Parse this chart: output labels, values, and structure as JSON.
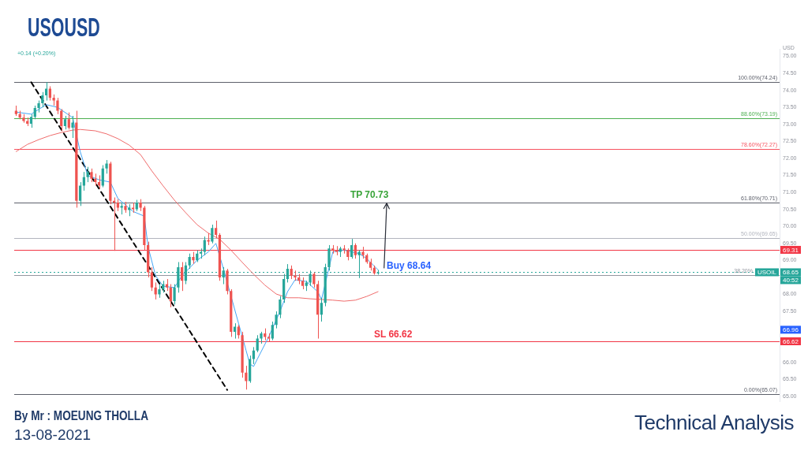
{
  "chart_data": {
    "type": "candlestick",
    "title": "USOUSD",
    "categories": [
      null,
      null,
      null,
      null,
      null,
      null,
      null,
      null,
      null,
      null,
      null,
      null,
      null,
      null,
      null,
      null,
      null,
      null,
      null,
      null,
      null,
      null,
      null,
      null,
      null,
      null,
      null,
      null,
      null,
      null,
      null,
      null,
      null,
      null,
      null,
      null,
      null,
      null,
      null,
      null,
      null,
      null,
      null,
      null,
      null,
      null,
      null,
      null,
      null,
      null,
      null,
      null,
      null,
      null,
      null,
      null,
      null,
      null,
      null,
      null,
      null,
      null,
      null,
      null,
      null,
      null,
      null,
      null,
      null,
      null,
      null,
      null,
      null,
      null,
      null,
      null,
      null,
      null,
      null,
      null,
      null,
      null,
      null,
      null,
      null,
      null,
      null,
      null,
      null,
      null,
      null,
      null,
      null,
      null,
      null,
      null,
      null,
      null,
      null,
      null,
      null,
      null,
      null,
      null,
      null,
      null,
      null,
      null,
      null,
      null,
      null,
      null,
      null,
      null,
      null,
      null,
      null,
      null,
      null,
      null,
      null,
      null,
      null,
      null,
      null,
      null,
      null,
      null,
      null,
      null,
      null,
      null,
      null,
      null,
      null,
      null,
      null,
      null,
      null,
      null,
      null,
      null,
      null,
      null,
      null,
      null,
      null,
      null,
      null,
      null,
      null,
      null,
      null,
      null,
      null,
      null,
      null,
      null,
      null,
      null,
      null,
      null,
      null,
      null,
      null,
      null,
      null,
      null,
      null,
      null,
      null,
      null,
      null,
      null,
      null,
      null,
      null,
      null,
      null,
      null,
      null,
      null,
      null,
      null,
      null,
      null,
      null,
      null,
      null,
      null,
      null,
      null,
      null,
      null,
      null,
      null,
      null,
      null,
      null,
      null,
      null,
      null,
      null
    ],
    "ohlc": [
      [
        73.4,
        73.55,
        73.25,
        73.3
      ],
      [
        73.3,
        73.4,
        73.15,
        73.2
      ],
      [
        73.2,
        73.3,
        73.05,
        73.1
      ],
      [
        73.1,
        73.2,
        72.95,
        73.02
      ],
      [
        73.02,
        73.3,
        72.9,
        73.22
      ],
      [
        73.22,
        73.55,
        73.15,
        73.48
      ],
      [
        73.48,
        73.7,
        73.35,
        73.62
      ],
      [
        73.62,
        73.95,
        73.5,
        73.85
      ],
      [
        73.85,
        74.24,
        73.7,
        74.05
      ],
      [
        74.05,
        74.12,
        73.7,
        73.78
      ],
      [
        73.78,
        73.88,
        73.55,
        73.7
      ],
      [
        73.7,
        73.78,
        73.3,
        73.4
      ],
      [
        73.4,
        73.45,
        72.8,
        72.95
      ],
      [
        72.95,
        73.25,
        72.85,
        73.15
      ],
      [
        73.15,
        73.35,
        72.85,
        72.9
      ],
      [
        72.9,
        73.25,
        72.6,
        73.05
      ],
      [
        73.05,
        73.4,
        70.55,
        70.75
      ],
      [
        70.75,
        71.3,
        70.6,
        71.2
      ],
      [
        71.2,
        71.6,
        71.05,
        71.45
      ],
      [
        71.45,
        71.75,
        71.3,
        71.6
      ],
      [
        71.6,
        71.7,
        71.3,
        71.4
      ],
      [
        71.4,
        71.55,
        71.2,
        71.3
      ],
      [
        71.3,
        71.5,
        71.1,
        71.2
      ],
      [
        71.2,
        71.8,
        71.15,
        71.7
      ],
      [
        71.7,
        71.95,
        71.55,
        71.85
      ],
      [
        71.85,
        71.9,
        70.65,
        70.75
      ],
      [
        70.75,
        70.85,
        69.28,
        70.7
      ],
      [
        70.7,
        70.8,
        70.45,
        70.55
      ],
      [
        70.55,
        70.7,
        70.35,
        70.6
      ],
      [
        70.6,
        70.72,
        70.4,
        70.48
      ],
      [
        70.48,
        70.65,
        70.3,
        70.55
      ],
      [
        70.55,
        70.7,
        70.4,
        70.5
      ],
      [
        70.5,
        70.78,
        70.45,
        70.7
      ],
      [
        70.7,
        70.8,
        70.45,
        70.55
      ],
      [
        70.55,
        70.6,
        69.3,
        69.45
      ],
      [
        69.45,
        69.55,
        68.5,
        68.65
      ],
      [
        68.65,
        68.8,
        68.1,
        68.2
      ],
      [
        68.2,
        68.35,
        67.85,
        68.0
      ],
      [
        68.0,
        68.3,
        67.9,
        68.15
      ],
      [
        68.15,
        68.4,
        68.05,
        68.3
      ],
      [
        68.3,
        68.45,
        68.1,
        68.2
      ],
      [
        68.2,
        68.3,
        67.62,
        67.8
      ],
      [
        67.8,
        68.3,
        67.7,
        68.2
      ],
      [
        68.2,
        68.95,
        68.05,
        68.8
      ],
      [
        68.8,
        68.95,
        68.1,
        68.4
      ],
      [
        68.4,
        68.95,
        68.3,
        68.85
      ],
      [
        68.85,
        69.2,
        68.75,
        69.1
      ],
      [
        69.1,
        69.25,
        68.9,
        69.0
      ],
      [
        69.0,
        69.3,
        68.95,
        69.2
      ],
      [
        69.2,
        69.35,
        69.05,
        69.25
      ],
      [
        69.25,
        69.7,
        69.15,
        69.6
      ],
      [
        69.6,
        69.8,
        69.45,
        69.55
      ],
      [
        69.55,
        70.05,
        69.5,
        69.95
      ],
      [
        69.95,
        70.17,
        69.65,
        69.75
      ],
      [
        69.75,
        69.8,
        68.4,
        68.5
      ],
      [
        68.5,
        68.8,
        68.3,
        68.7
      ],
      [
        68.7,
        68.75,
        68.0,
        68.1
      ],
      [
        68.1,
        68.15,
        66.75,
        66.9
      ],
      [
        66.9,
        67.15,
        66.7,
        67.05
      ],
      [
        67.05,
        67.1,
        66.7,
        66.8
      ],
      [
        66.8,
        66.9,
        65.55,
        65.7
      ],
      [
        65.7,
        65.9,
        65.2,
        65.45
      ],
      [
        65.45,
        66.2,
        65.4,
        66.1
      ],
      [
        66.1,
        66.45,
        65.95,
        66.35
      ],
      [
        66.35,
        66.8,
        66.3,
        66.7
      ],
      [
        66.7,
        66.9,
        66.55,
        66.85
      ],
      [
        66.85,
        67.0,
        66.65,
        66.75
      ],
      [
        66.75,
        66.85,
        66.62,
        66.7
      ],
      [
        66.7,
        67.2,
        66.65,
        67.1
      ],
      [
        67.1,
        67.5,
        67.0,
        67.4
      ],
      [
        67.4,
        67.95,
        67.3,
        67.85
      ],
      [
        67.85,
        68.6,
        67.75,
        68.45
      ],
      [
        68.45,
        68.89,
        68.35,
        68.75
      ],
      [
        68.75,
        68.85,
        68.45,
        68.55
      ],
      [
        68.55,
        68.7,
        68.4,
        68.5
      ],
      [
        68.5,
        68.6,
        68.3,
        68.4
      ],
      [
        68.4,
        68.5,
        68.15,
        68.25
      ],
      [
        68.25,
        68.4,
        68.1,
        68.35
      ],
      [
        68.35,
        68.7,
        68.25,
        68.6
      ],
      [
        68.6,
        68.65,
        68.2,
        68.3
      ],
      [
        68.3,
        68.4,
        66.7,
        67.4
      ],
      [
        67.4,
        67.9,
        67.2,
        67.75
      ],
      [
        67.75,
        68.9,
        67.65,
        68.8
      ],
      [
        68.8,
        69.45,
        68.7,
        69.35
      ],
      [
        69.35,
        69.45,
        69.2,
        69.3
      ],
      [
        69.3,
        69.42,
        69.15,
        69.25
      ],
      [
        69.25,
        69.4,
        69.1,
        69.35
      ],
      [
        69.35,
        69.45,
        69.2,
        69.3
      ],
      [
        69.3,
        69.35,
        69.0,
        69.1
      ],
      [
        69.1,
        69.63,
        69.05,
        69.45
      ],
      [
        69.45,
        69.5,
        69.05,
        69.15
      ],
      [
        69.15,
        69.3,
        68.48,
        69.25
      ],
      [
        69.25,
        69.4,
        69.05,
        69.15
      ],
      [
        69.15,
        69.2,
        68.9,
        68.95
      ],
      [
        68.95,
        69.05,
        68.7,
        68.78
      ],
      [
        68.78,
        68.85,
        68.58,
        68.62
      ],
      [
        68.62,
        68.72,
        68.58,
        68.65
      ],
      null,
      null,
      null,
      null,
      null,
      null,
      null,
      null,
      null,
      null,
      null,
      null,
      null,
      null,
      null,
      null,
      null,
      null,
      null,
      null,
      null,
      null,
      null,
      null,
      null,
      null,
      null,
      null,
      null,
      null,
      null,
      null,
      null,
      null,
      null,
      null,
      null,
      null,
      null,
      null,
      null,
      null,
      null,
      null,
      null,
      null,
      null,
      null,
      null,
      null,
      null,
      null,
      null,
      null,
      null,
      null,
      null,
      null,
      null,
      null,
      null,
      null,
      null,
      null,
      null,
      null,
      null,
      null,
      null,
      null,
      null,
      null,
      null,
      null,
      null,
      null,
      null,
      null,
      null,
      null,
      null,
      null,
      null,
      null,
      null,
      null,
      null,
      null,
      null,
      null,
      null,
      null,
      null,
      null,
      null,
      null,
      null,
      null,
      null,
      null,
      null,
      null,
      null,
      null,
      null,
      null
    ],
    "colors": [
      "#ef5350",
      "#ef5350",
      "#ef5350",
      "#ef5350",
      "#26a69a",
      "#26a69a",
      "#26a69a",
      "#26a69a",
      "#26a69a",
      "#ef5350",
      "#ef5350",
      "#ef5350",
      "#ef5350",
      "#26a69a",
      "#ef5350",
      "#26a69a",
      "#ef5350",
      "#26a69a",
      "#26a69a",
      "#26a69a",
      "#ef5350",
      "#ef5350",
      "#ef5350",
      "#26a69a",
      "#26a69a",
      "#ef5350",
      "#ef5350",
      "#ef5350",
      "#26a69a",
      "#ef5350",
      "#26a69a",
      "#ef5350",
      "#26a69a",
      "#ef5350",
      "#ef5350",
      "#ef5350",
      "#ef5350",
      "#ef5350",
      "#26a69a",
      "#26a69a",
      "#ef5350",
      "#ef5350",
      "#26a69a",
      "#26a69a",
      "#ef5350",
      "#26a69a",
      "#26a69a",
      "#ef5350",
      "#26a69a",
      "#26a69a",
      "#26a69a",
      "#ef5350",
      "#26a69a",
      "#ef5350",
      "#ef5350",
      "#26a69a",
      "#ef5350",
      "#ef5350",
      "#26a69a",
      "#ef5350",
      "#ef5350",
      "#ef5350",
      "#26a69a",
      "#26a69a",
      "#26a69a",
      "#26a69a",
      "#ef5350",
      "#ef5350",
      "#26a69a",
      "#26a69a",
      "#26a69a",
      "#26a69a",
      "#26a69a",
      "#ef5350",
      "#ef5350",
      "#ef5350",
      "#ef5350",
      "#26a69a",
      "#26a69a",
      "#ef5350",
      "#ef5350",
      "#26a69a",
      "#26a69a",
      "#26a69a",
      "#ef5350",
      "#ef5350",
      "#26a69a",
      "#ef5350",
      "#ef5350",
      "#26a69a",
      "#ef5350",
      "#26a69a",
      "#ef5350",
      "#ef5350",
      "#ef5350",
      "#ef5350",
      "#26a69a",
      null,
      null,
      null,
      null,
      null,
      null,
      null,
      null,
      null,
      null,
      null,
      null,
      null,
      null,
      null,
      null,
      null,
      null,
      null,
      null,
      null,
      null,
      null,
      null,
      null,
      null,
      null,
      null,
      null,
      null,
      null,
      null,
      null,
      null,
      null,
      null,
      null,
      null,
      null,
      null,
      null,
      null,
      null,
      null,
      null,
      null,
      null,
      null,
      null,
      null,
      null,
      null,
      null,
      null,
      null,
      null,
      null,
      null,
      null,
      null,
      null,
      null,
      null,
      null,
      null,
      null,
      null,
      null,
      null,
      null,
      null,
      null,
      null,
      null,
      null,
      null,
      null,
      null,
      null,
      null,
      null,
      null,
      null,
      null,
      null,
      null,
      null,
      null,
      null,
      null,
      null,
      null,
      null,
      null,
      null,
      null,
      null,
      null,
      null,
      null,
      null,
      null,
      null,
      null,
      null,
      null
    ],
    "series": [
      {
        "type": "line",
        "color": "#ef6c6c",
        "values": [
          72.2,
          null,
          null,
          72.41,
          null,
          null,
          72.55,
          null,
          null,
          72.67,
          null,
          null,
          72.76,
          null,
          null,
          72.83,
          null,
          72.85,
          null,
          null,
          null,
          72.81,
          null,
          null,
          72.72,
          null,
          null,
          72.58,
          null,
          null,
          72.39,
          null,
          null,
          72.11,
          null,
          null,
          71.63,
          null,
          null,
          71.19,
          null,
          null,
          70.77,
          null,
          null,
          70.4,
          null,
          null,
          70.05,
          null,
          null,
          69.8,
          null,
          null,
          69.62,
          null,
          null,
          69.3,
          null,
          null,
          68.94,
          null,
          null,
          68.59,
          null,
          null,
          68.27,
          null,
          null,
          68.01,
          null,
          null,
          67.9,
          null,
          null,
          67.9,
          null,
          null,
          67.87,
          null,
          null,
          67.85,
          null,
          null,
          67.83,
          null,
          null,
          67.8,
          null,
          null,
          67.83,
          null,
          null,
          67.94,
          null,
          null,
          68.08,
          null,
          null,
          null,
          null,
          null,
          null,
          null,
          null,
          null,
          null,
          null,
          null,
          null,
          null,
          null,
          null,
          null,
          null,
          null,
          null,
          null,
          null,
          null,
          null,
          null,
          null,
          null,
          null,
          null,
          null,
          null,
          null,
          null,
          null,
          null,
          null,
          null,
          null,
          null,
          null,
          null,
          null,
          null,
          null,
          null,
          null,
          null,
          null,
          null,
          null,
          null,
          null,
          null,
          null,
          null,
          null,
          null,
          null,
          null,
          null,
          null,
          null,
          null,
          null,
          null,
          null,
          null,
          null,
          null,
          null,
          null,
          null,
          null,
          null,
          null,
          null,
          null,
          null,
          null,
          null,
          null,
          null,
          null,
          null,
          null,
          null,
          null,
          null,
          null,
          null,
          null,
          null,
          null,
          null,
          null,
          null,
          null,
          null,
          null,
          null,
          null,
          null,
          null,
          null,
          null,
          null
        ]
      },
      {
        "type": "line",
        "color": "#42a5f5",
        "values": [
          73.36,
          null,
          null,
          null,
          73.3,
          null,
          null,
          null,
          73.58,
          null,
          null,
          73.5,
          null,
          null,
          null,
          73.2,
          null,
          72.2,
          null,
          71.5,
          null,
          null,
          71.37,
          null,
          null,
          71.3,
          null,
          70.82,
          null,
          null,
          null,
          70.44,
          null,
          null,
          70.3,
          69.4,
          null,
          68.55,
          null,
          68.24,
          null,
          null,
          68.2,
          null,
          68.55,
          null,
          null,
          null,
          69.0,
          null,
          null,
          69.25,
          null,
          69.5,
          null,
          68.75,
          null,
          null,
          null,
          67.15,
          null,
          66.35,
          65.95,
          65.88,
          66.1,
          null,
          null,
          66.75,
          null,
          null,
          67.5,
          null,
          68.08,
          null,
          68.43,
          null,
          null,
          68.38,
          null,
          null,
          68.08,
          67.85,
          null,
          null,
          69.25,
          null,
          null,
          69.3,
          null,
          null,
          null,
          69.2,
          null,
          69.05,
          null,
          null,
          68.72,
          null,
          null,
          null,
          null,
          null,
          null,
          null,
          null,
          null,
          null,
          null,
          null,
          null,
          null,
          null,
          null,
          null,
          null,
          null,
          null,
          null,
          null,
          null,
          null,
          null,
          null,
          null,
          null,
          null,
          null,
          null,
          null,
          null,
          null,
          null,
          null,
          null,
          null,
          null,
          null,
          null,
          null,
          null,
          null,
          null,
          null,
          null,
          null,
          null,
          null,
          null,
          null,
          null,
          null,
          null,
          null,
          null,
          null,
          null,
          null,
          null,
          null,
          null,
          null,
          null,
          null,
          null,
          null,
          null,
          null,
          null,
          null,
          null,
          null,
          null,
          null,
          null,
          null,
          null,
          null,
          null,
          null,
          null,
          null,
          null,
          null,
          null,
          null,
          null,
          null,
          null,
          null,
          null,
          null,
          null,
          null,
          null,
          null,
          null,
          null,
          null,
          null,
          null,
          null,
          null,
          null
        ]
      },
      {
        "type": "line",
        "color": "#000000",
        "line_style": "dashed",
        "values": [
          null,
          null,
          null,
          null,
          74.24,
          null,
          null,
          null,
          null,
          null,
          null,
          null,
          null,
          null,
          null,
          null,
          null,
          null,
          null,
          null,
          null,
          null,
          null,
          null,
          null,
          null,
          null,
          null,
          null,
          null,
          null,
          null,
          null,
          null,
          null,
          null,
          null,
          null,
          null,
          null,
          null,
          null,
          null,
          null,
          null,
          null,
          null,
          null,
          null,
          null,
          null,
          null,
          null,
          null,
          null,
          null,
          65.19,
          null,
          null,
          null,
          null,
          null,
          null,
          null,
          null,
          null,
          null,
          null,
          null,
          null,
          null,
          null,
          null,
          null,
          null,
          null,
          null,
          null,
          null,
          null,
          null,
          null,
          null,
          null,
          null,
          null,
          null,
          null,
          null,
          null,
          null,
          null,
          null,
          null,
          null,
          null,
          null,
          null,
          null,
          null,
          null,
          null,
          null,
          null,
          null,
          null,
          null,
          null,
          null,
          null,
          null,
          null,
          null,
          null,
          null,
          null,
          null,
          null,
          null,
          null,
          null,
          null,
          null,
          null,
          null,
          null,
          null,
          null,
          null,
          null,
          null,
          null,
          null,
          null,
          null,
          null,
          null,
          null,
          null,
          null,
          null,
          null,
          null,
          null,
          null,
          null,
          null,
          null,
          null,
          null,
          null,
          null,
          null,
          null,
          null,
          null,
          null,
          null,
          null,
          null,
          null,
          null,
          null,
          null,
          null,
          null,
          null,
          null,
          null,
          null,
          null,
          null,
          null,
          null,
          null,
          null,
          null,
          null,
          null,
          null,
          null,
          null,
          null,
          null,
          null,
          null,
          null,
          null,
          null,
          null,
          null,
          null,
          null,
          null,
          null,
          null,
          null,
          null,
          null,
          null,
          null,
          null,
          null
        ]
      }
    ],
    "ylim": [
      64.84,
      75.22
    ],
    "yticks": [
      {
        "value": 65,
        "label": "65.00"
      },
      {
        "value": 65.5,
        "label": "65.50"
      },
      {
        "value": 66,
        "label": "66.00"
      },
      {
        "value": 67.5,
        "label": "67.50"
      },
      {
        "value": 68,
        "label": "68.00"
      },
      {
        "value": 69,
        "label": "69.00"
      },
      {
        "value": 69.5,
        "label": "69.50"
      },
      {
        "value": 70,
        "label": "70.00"
      },
      {
        "value": 70.5,
        "label": "70.50"
      },
      {
        "value": 71,
        "label": "71.00"
      },
      {
        "value": 71.5,
        "label": "71.50"
      },
      {
        "value": 72,
        "label": "72.00"
      },
      {
        "value": 72.5,
        "label": "72.50"
      },
      {
        "value": 73,
        "label": "73.00"
      },
      {
        "value": 73.5,
        "label": "73.50"
      },
      {
        "value": 74,
        "label": "74.00"
      },
      {
        "value": 74.5,
        "label": "74.50"
      },
      {
        "value": 75,
        "label": "75.00"
      }
    ],
    "ref_lines": [
      {
        "axis": "y",
        "value": 74.24,
        "label": "100.00%(74.24)",
        "color": "#5d606b"
      },
      {
        "axis": "y",
        "value": 73.19,
        "label": "88.60%(73.19)",
        "color": "#4caf50"
      },
      {
        "axis": "y",
        "value": 72.27,
        "label": "78.60%(72.27)",
        "color": "#f7525f"
      },
      {
        "axis": "y",
        "value": 70.71,
        "label": "61.80%(70.71)",
        "color": "#5d606b"
      },
      {
        "axis": "y",
        "value": 69.65,
        "label": "50.00%(69.65)",
        "color": "#b2b5be"
      },
      {
        "axis": "y",
        "value": 68.57,
        "color": "#9598a1"
      },
      {
        "axis": "y",
        "value": 65.07,
        "label": "0.00%(65.07)",
        "color": "#5d606b"
      },
      {
        "axis": "y",
        "value": 69.31,
        "color": "#f23645"
      },
      {
        "axis": "y",
        "value": 66.62,
        "color": "#f23645"
      },
      {
        "axis": "y",
        "value": 68.65,
        "color": "#26a69a",
        "line_style": "dotted"
      }
    ],
    "annotations": [
      "+0.14 (+0.20%)",
      "USD",
      {
        "text": "TP 70.73",
        "y": 70.73
      },
      {
        "text": "Buy 68.64",
        "y": 68.64
      },
      {
        "text": "SL 66.62",
        "y": 66.62
      },
      {
        "text": "69.31",
        "y": 69.31
      },
      {
        "text": "USOIL",
        "y": 68.65
      },
      {
        "text": "68.65",
        "y": 68.65
      },
      "40:52",
      {
        "text": "66.96",
        "y": 66.96
      },
      {
        "text": "66.62",
        "y": 66.62
      },
      "By Mr : MOEUNG THOLLA",
      "13-08-2021",
      "Technical Analysis",
      {
        "text": "38.20%",
        "y": 68.57
      }
    ],
    "tick_labels": "y",
    "marker": "none",
    "line_style": "solid"
  }
}
